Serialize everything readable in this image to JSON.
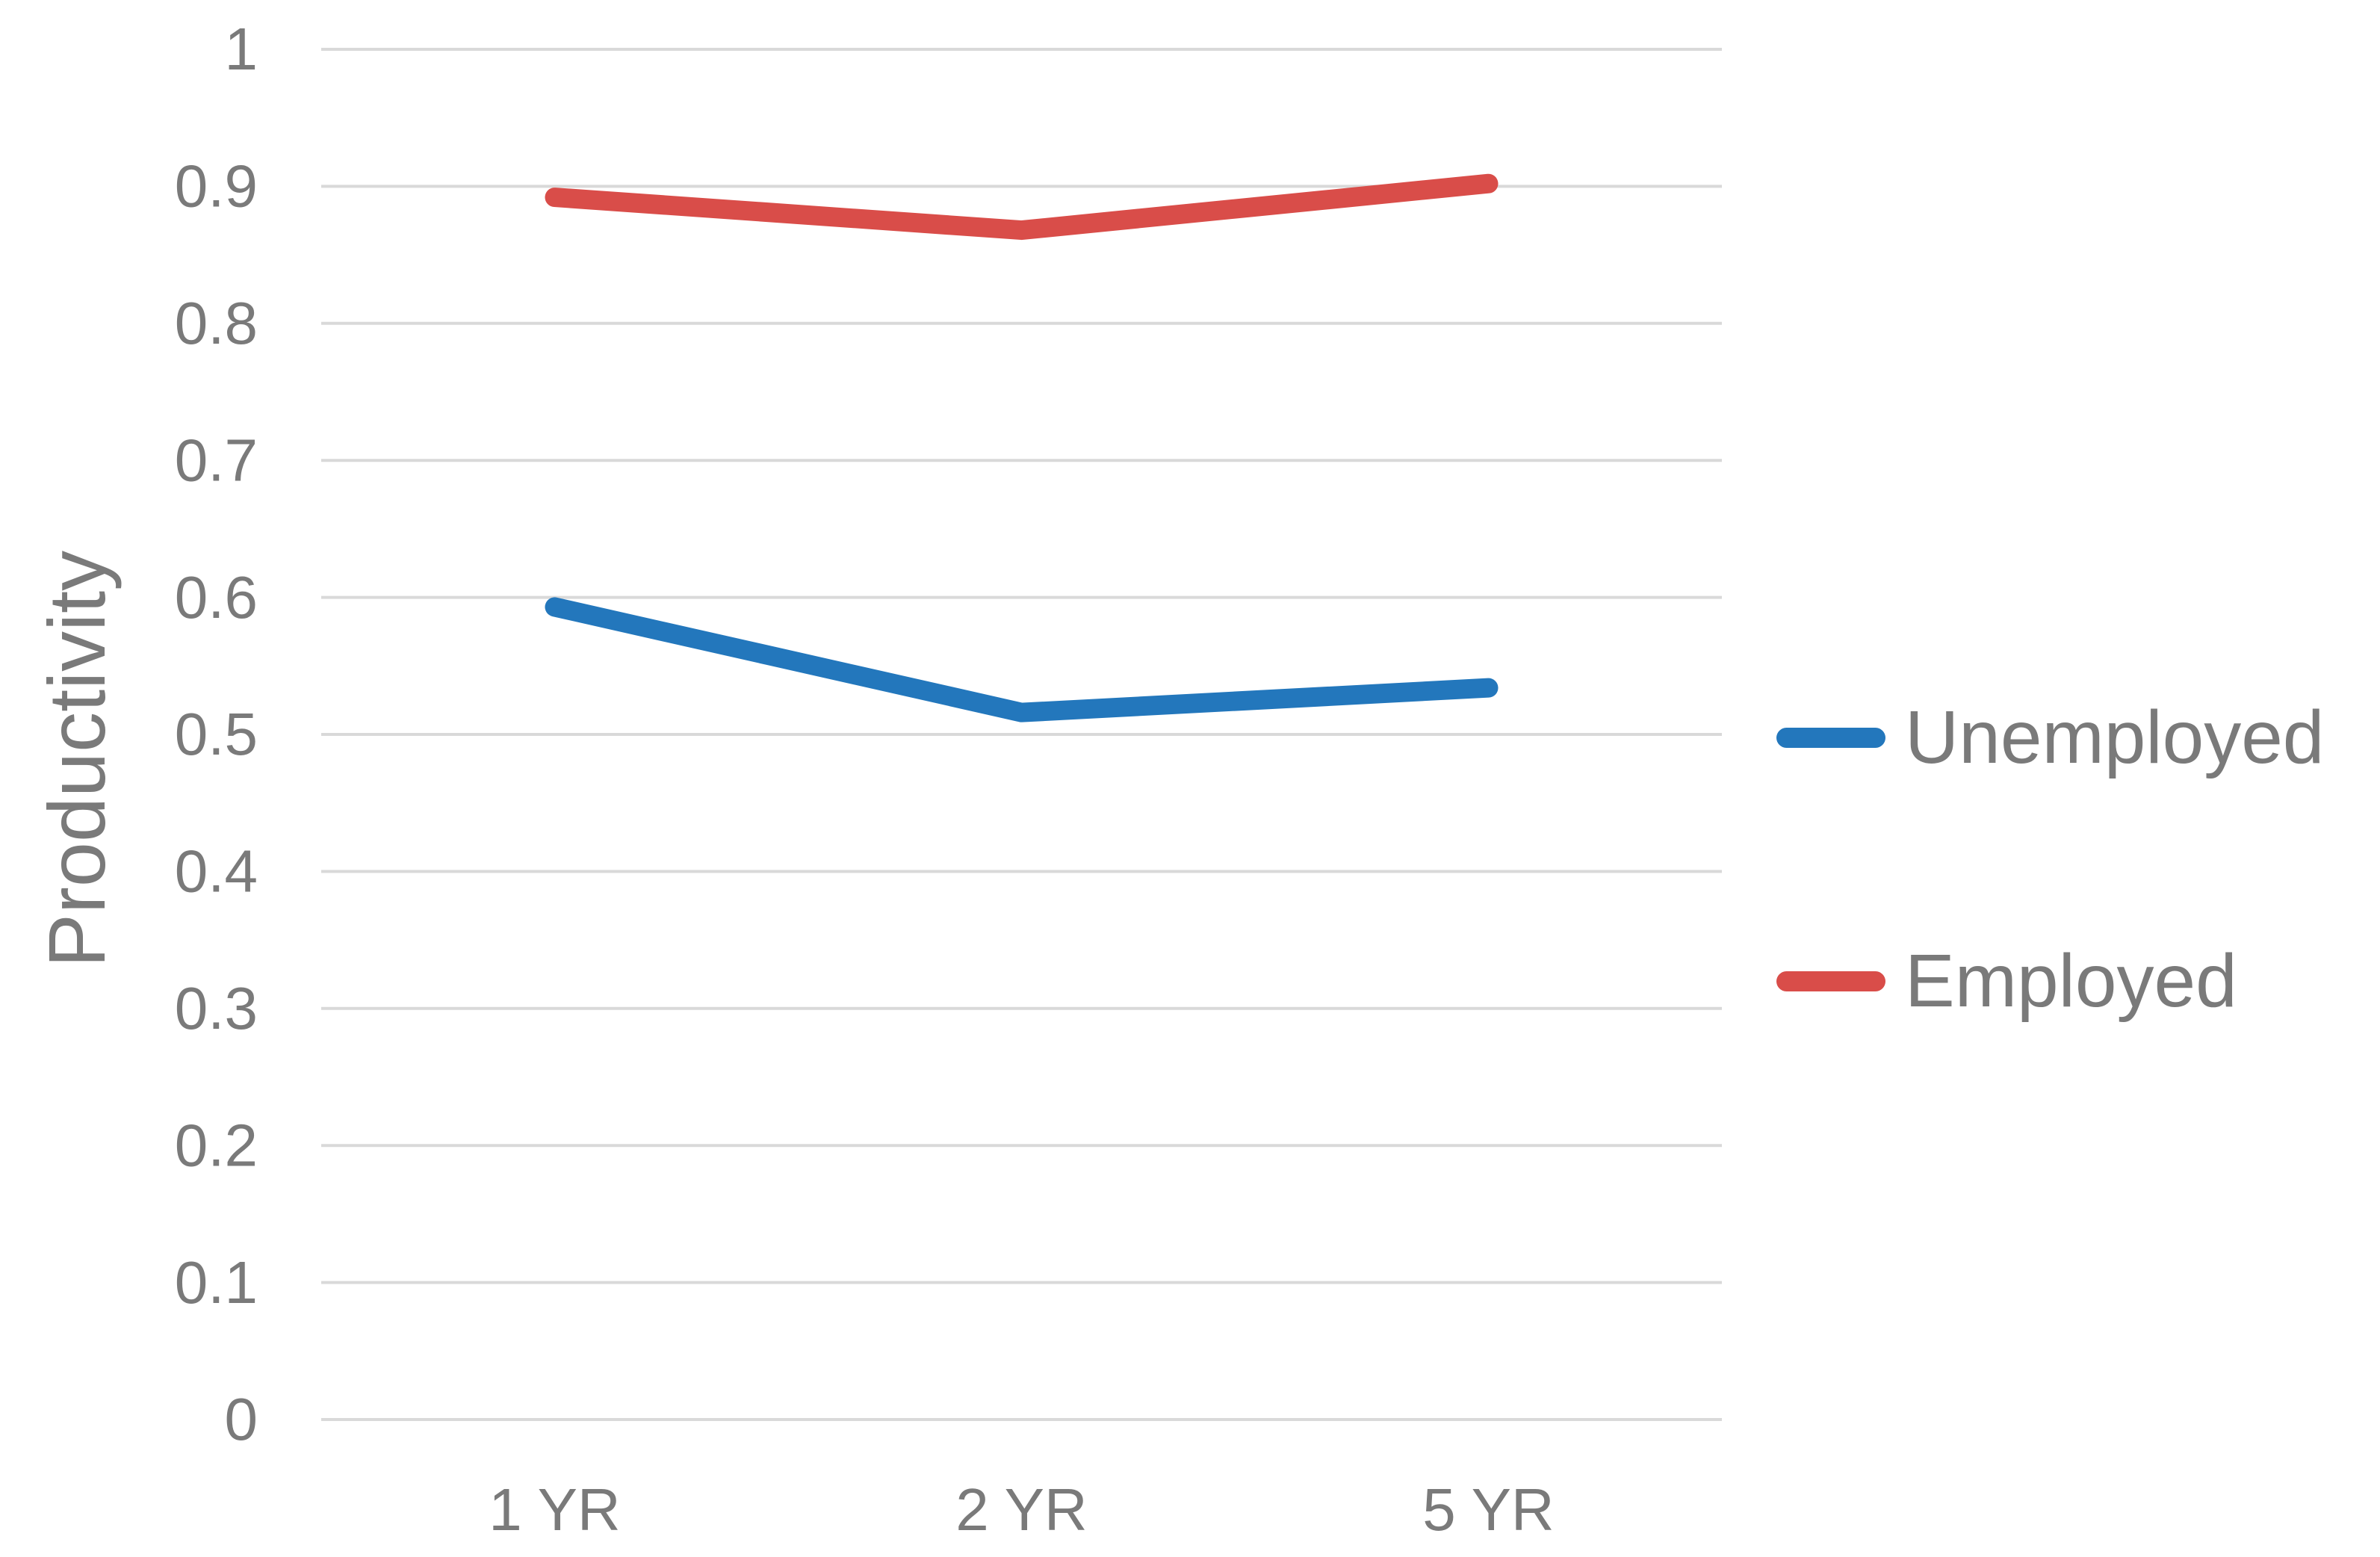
{
  "chart_data": {
    "type": "line",
    "categories": [
      "1 YR",
      "2 YR",
      "5 YR"
    ],
    "series": [
      {
        "name": "Unemployed",
        "color": "#2377BC",
        "values": [
          0.593,
          0.516,
          0.534
        ]
      },
      {
        "name": "Employed",
        "color": "#D94D49",
        "values": [
          0.892,
          0.868,
          0.902
        ]
      }
    ],
    "title": "",
    "xlabel": "",
    "ylabel": "Productivity",
    "ylim": [
      0,
      1
    ],
    "ytick_step": 0.1,
    "y_tick_labels": [
      "0",
      "0.1",
      "0.2",
      "0.3",
      "0.4",
      "0.5",
      "0.6",
      "0.7",
      "0.8",
      "0.9",
      "1"
    ],
    "grid": "horizontal-only",
    "legend_position": "right",
    "text_color": "#7A7A7A",
    "gridline_color": "#D9D9D9",
    "background_color": "#FFFFFF"
  }
}
